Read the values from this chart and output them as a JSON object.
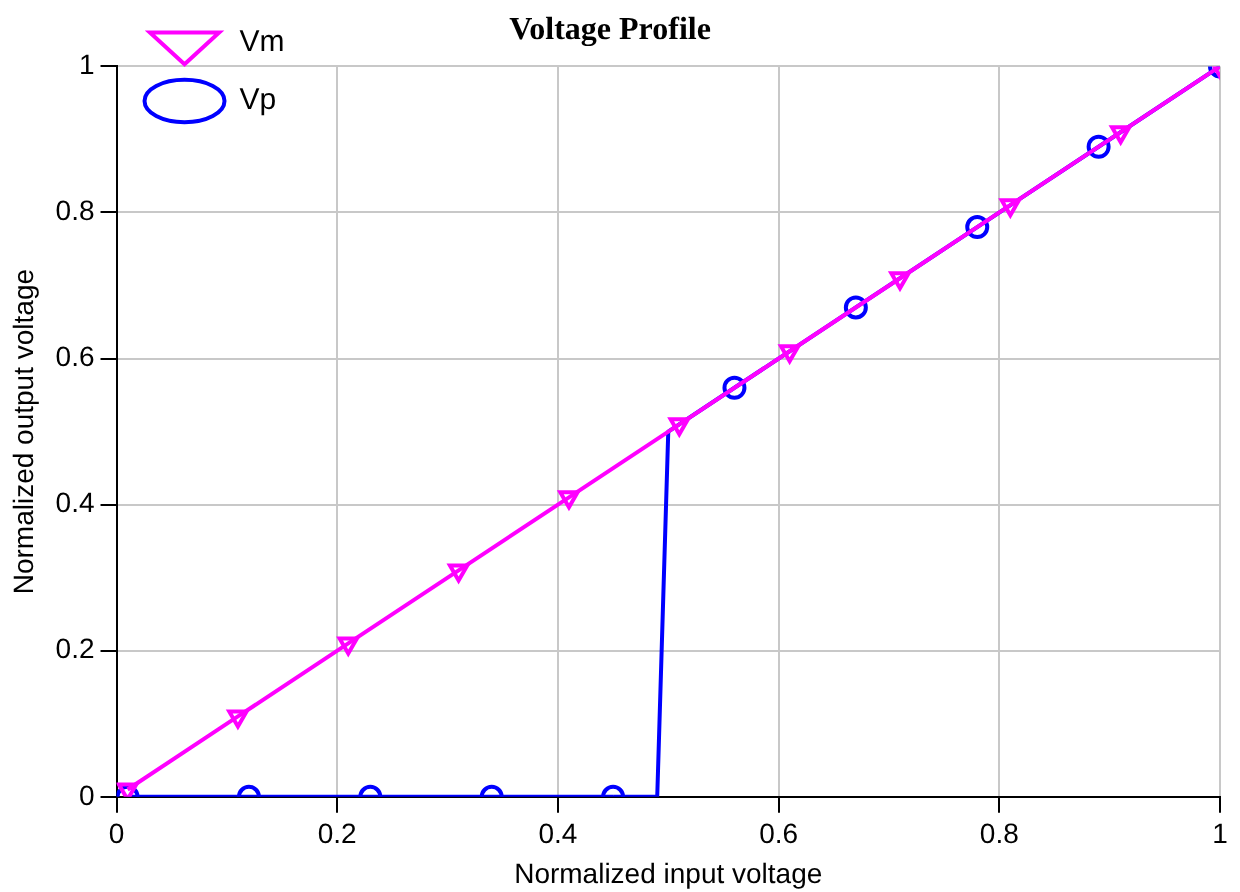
{
  "chart_data": {
    "type": "line",
    "title": "Voltage Profile",
    "xlabel": "Normalized input voltage",
    "ylabel": "Normalized output voltage",
    "xlim": [
      0,
      1
    ],
    "ylim": [
      0,
      1
    ],
    "xticks": [
      0,
      0.2,
      0.4,
      0.6,
      0.8,
      1
    ],
    "yticks": [
      0,
      0.2,
      0.4,
      0.6,
      0.8,
      1
    ],
    "grid": true,
    "legend": "top left",
    "line_style": "solid",
    "series": [
      {
        "name": "Vm",
        "color": "#ff00ff",
        "marker": "triangle",
        "x": [
          0.01,
          0.11,
          0.21,
          0.31,
          0.41,
          0.51,
          0.61,
          0.71,
          0.81,
          0.91,
          1.0
        ],
        "values": [
          0.01,
          0.11,
          0.21,
          0.31,
          0.41,
          0.51,
          0.61,
          0.71,
          0.81,
          0.91,
          1.0
        ]
      },
      {
        "name": "Vp",
        "color": "#0000ff",
        "marker": "circle",
        "x": [
          0.01,
          0.12,
          0.23,
          0.34,
          0.45,
          0.5,
          0.56,
          0.67,
          0.78,
          0.89,
          1.0
        ],
        "values": [
          0,
          0,
          0,
          0,
          0,
          null,
          0.56,
          0.67,
          0.78,
          0.89,
          1.0
        ]
      },
      {
        "color": "#0000ff",
        "marker": "none",
        "x": [
          0.45,
          0.49,
          0.5,
          0.56
        ],
        "values": [
          0,
          0,
          0.5,
          0.56
        ]
      }
    ]
  }
}
